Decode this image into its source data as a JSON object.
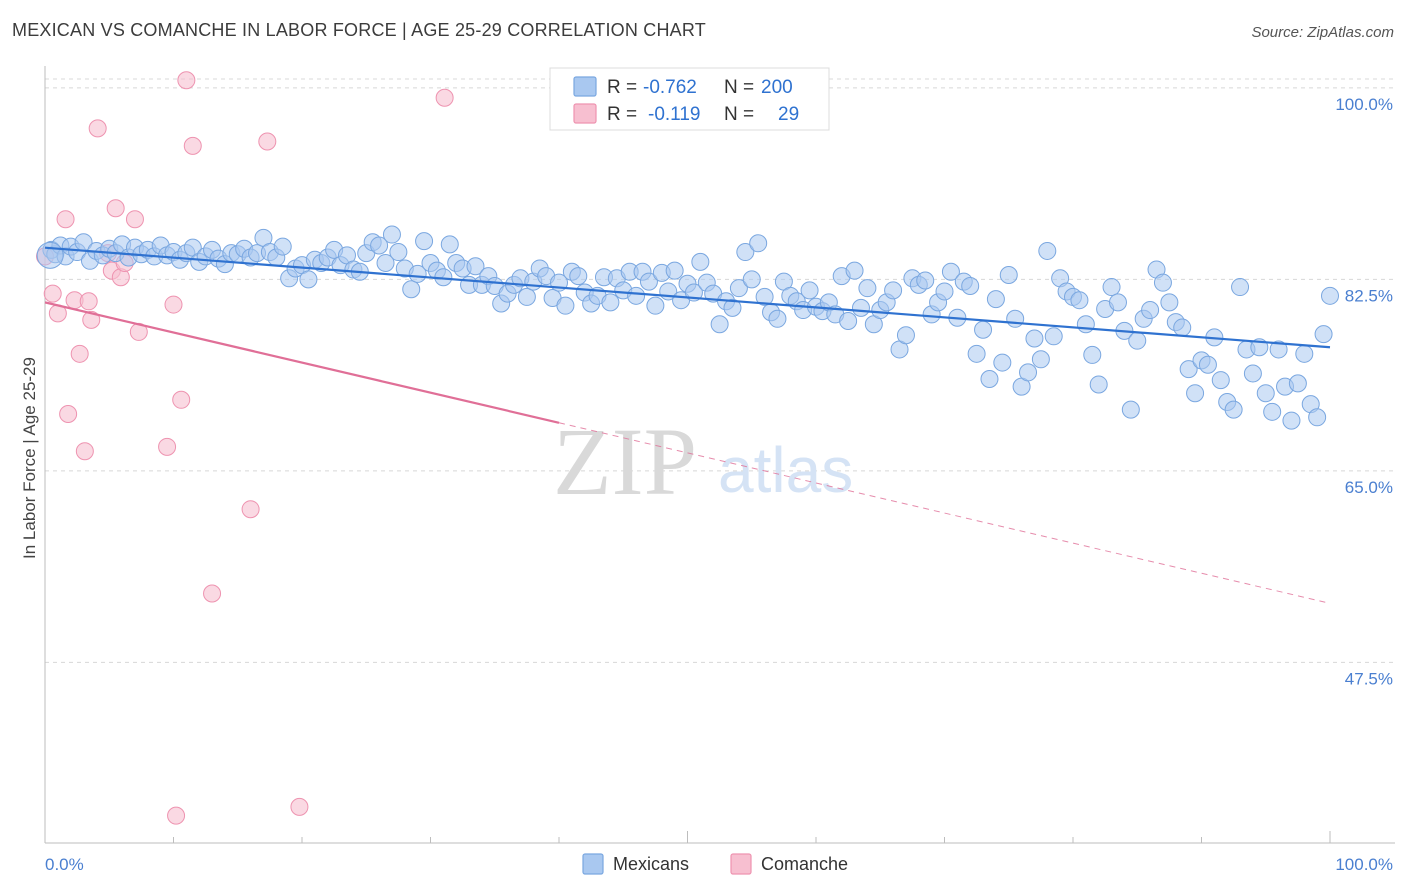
{
  "title": "MEXICAN VS COMANCHE IN LABOR FORCE | AGE 25-29 CORRELATION CHART",
  "source": "Source: ZipAtlas.com",
  "watermark": {
    "zip": "ZIP",
    "atlas": "atlas"
  },
  "colors": {
    "blue_fill": "#a9c8f0",
    "blue_stroke": "#7aa7e0",
    "blue_line": "#2f72d0",
    "pink_fill": "#f7bfd0",
    "pink_stroke": "#ee93b0",
    "pink_line": "#e06f97",
    "grid": "#d8d8d8",
    "tick_text": "#4a7fd0"
  },
  "legend": {
    "rows": [
      {
        "r_label": "R =",
        "r_value": "-0.762",
        "n_label": "N =",
        "n_value": "200",
        "color": "#a9c8f0"
      },
      {
        "r_label": "R =",
        "r_value": "-0.119",
        "n_label": "N =",
        "n_value": "29",
        "color": "#f7bfd0"
      }
    ]
  },
  "bottom_legend": [
    {
      "label": "Mexicans",
      "color": "#a9c8f0"
    },
    {
      "label": "Comanche",
      "color": "#f7bfd0"
    }
  ],
  "chart_data": {
    "type": "scatter",
    "title": "MEXICAN VS COMANCHE IN LABOR FORCE | AGE 25-29 CORRELATION CHART",
    "xlabel": "",
    "ylabel": "In Labor Force | Age 25-29",
    "xlim": [
      0,
      100
    ],
    "ylim": [
      31,
      102
    ],
    "x_tick_labels": [
      "0.0%",
      "100.0%"
    ],
    "y_ticks": [
      100.0,
      82.5,
      65.0,
      47.5
    ],
    "y_tick_labels": [
      "100.0%",
      "82.5%",
      "65.0%",
      "47.5%"
    ],
    "grid": true,
    "legend_position": "top-center",
    "series": [
      {
        "name": "Mexicans",
        "trend": {
          "x0": 0,
          "y0": 85.4,
          "x1": 100,
          "y1": 76.3
        },
        "points": [
          [
            0.5,
            85.2
          ],
          [
            0.8,
            84.8
          ],
          [
            1.2,
            85.6
          ],
          [
            1.6,
            84.6
          ],
          [
            2.0,
            85.5
          ],
          [
            2.5,
            85.0
          ],
          [
            3.0,
            85.9
          ],
          [
            3.5,
            84.2
          ],
          [
            4.0,
            85.1
          ],
          [
            4.5,
            84.7
          ],
          [
            5.0,
            85.3
          ],
          [
            5.5,
            84.9
          ],
          [
            6.0,
            85.7
          ],
          [
            6.5,
            84.5
          ],
          [
            7.0,
            85.4
          ],
          [
            7.5,
            84.8
          ],
          [
            8.0,
            85.2
          ],
          [
            8.5,
            84.6
          ],
          [
            9.0,
            85.6
          ],
          [
            9.5,
            84.7
          ],
          [
            10.0,
            85.0
          ],
          [
            10.5,
            84.3
          ],
          [
            11.0,
            84.9
          ],
          [
            11.5,
            85.4
          ],
          [
            12.0,
            84.1
          ],
          [
            12.5,
            84.6
          ],
          [
            13.0,
            85.2
          ],
          [
            13.5,
            84.4
          ],
          [
            14.0,
            83.9
          ],
          [
            14.5,
            84.9
          ],
          [
            15.0,
            84.8
          ],
          [
            15.5,
            85.3
          ],
          [
            16.0,
            84.5
          ],
          [
            16.5,
            84.9
          ],
          [
            17.0,
            86.3
          ],
          [
            17.5,
            85.0
          ],
          [
            18.0,
            84.5
          ],
          [
            18.5,
            85.5
          ],
          [
            19.0,
            82.6
          ],
          [
            19.5,
            83.5
          ],
          [
            20.0,
            83.8
          ],
          [
            20.5,
            82.5
          ],
          [
            21.0,
            84.3
          ],
          [
            21.5,
            84.0
          ],
          [
            22.0,
            84.5
          ],
          [
            22.5,
            85.2
          ],
          [
            23.0,
            83.8
          ],
          [
            23.5,
            84.7
          ],
          [
            24.0,
            83.4
          ],
          [
            24.5,
            83.2
          ],
          [
            25.0,
            84.9
          ],
          [
            25.5,
            85.9
          ],
          [
            26.0,
            85.6
          ],
          [
            26.5,
            84.0
          ],
          [
            27.0,
            86.6
          ],
          [
            27.5,
            85.0
          ],
          [
            28.0,
            83.5
          ],
          [
            28.5,
            81.6
          ],
          [
            29.0,
            83.0
          ],
          [
            29.5,
            86.0
          ],
          [
            30.0,
            84.0
          ],
          [
            30.5,
            83.3
          ],
          [
            31.0,
            82.7
          ],
          [
            31.5,
            85.7
          ],
          [
            32.0,
            84.0
          ],
          [
            32.5,
            83.5
          ],
          [
            33.0,
            82.0
          ],
          [
            33.5,
            83.7
          ],
          [
            34.0,
            82.0
          ],
          [
            34.5,
            82.8
          ],
          [
            35.0,
            81.9
          ],
          [
            35.5,
            80.3
          ],
          [
            36.0,
            81.2
          ],
          [
            36.5,
            82.0
          ],
          [
            37.0,
            82.6
          ],
          [
            37.5,
            80.9
          ],
          [
            38.0,
            82.3
          ],
          [
            38.5,
            83.5
          ],
          [
            39.0,
            82.8
          ],
          [
            39.5,
            80.8
          ],
          [
            40.0,
            82.2
          ],
          [
            40.5,
            80.1
          ],
          [
            41.0,
            83.2
          ],
          [
            41.5,
            82.8
          ],
          [
            42.0,
            81.3
          ],
          [
            42.5,
            80.3
          ],
          [
            43.0,
            81.0
          ],
          [
            43.5,
            82.7
          ],
          [
            44.0,
            80.4
          ],
          [
            44.5,
            82.6
          ],
          [
            45.0,
            81.5
          ],
          [
            45.5,
            83.2
          ],
          [
            46.0,
            81.0
          ],
          [
            46.5,
            83.2
          ],
          [
            47.0,
            82.3
          ],
          [
            47.5,
            80.1
          ],
          [
            48.0,
            83.1
          ],
          [
            48.5,
            81.4
          ],
          [
            49.0,
            83.3
          ],
          [
            49.5,
            80.6
          ],
          [
            50.0,
            82.1
          ],
          [
            50.5,
            81.3
          ],
          [
            51.0,
            84.1
          ],
          [
            51.5,
            82.2
          ],
          [
            52.0,
            81.2
          ],
          [
            52.5,
            78.4
          ],
          [
            53.0,
            80.5
          ],
          [
            53.5,
            79.9
          ],
          [
            54.0,
            81.7
          ],
          [
            54.5,
            85.0
          ],
          [
            55.0,
            82.5
          ],
          [
            55.5,
            85.8
          ],
          [
            56.0,
            80.9
          ],
          [
            56.5,
            79.5
          ],
          [
            57.0,
            78.9
          ],
          [
            57.5,
            82.3
          ],
          [
            58.0,
            81.0
          ],
          [
            58.5,
            80.5
          ],
          [
            59.0,
            79.7
          ],
          [
            59.5,
            81.5
          ],
          [
            60.0,
            80.0
          ],
          [
            60.5,
            79.6
          ],
          [
            61.0,
            80.4
          ],
          [
            61.5,
            79.3
          ],
          [
            62.0,
            82.8
          ],
          [
            62.5,
            78.7
          ],
          [
            63.0,
            83.3
          ],
          [
            63.5,
            79.9
          ],
          [
            64.0,
            81.7
          ],
          [
            64.5,
            78.4
          ],
          [
            65.0,
            79.7
          ],
          [
            65.5,
            80.4
          ],
          [
            66.0,
            81.5
          ],
          [
            66.5,
            76.1
          ],
          [
            67.0,
            77.4
          ],
          [
            67.5,
            82.6
          ],
          [
            68.0,
            82.0
          ],
          [
            68.5,
            82.4
          ],
          [
            69.0,
            79.3
          ],
          [
            69.5,
            80.4
          ],
          [
            70.0,
            81.4
          ],
          [
            70.5,
            83.2
          ],
          [
            71.0,
            79.0
          ],
          [
            71.5,
            82.3
          ],
          [
            72.0,
            81.9
          ],
          [
            72.5,
            75.7
          ],
          [
            73.0,
            77.9
          ],
          [
            73.5,
            73.4
          ],
          [
            74.0,
            80.7
          ],
          [
            74.5,
            74.9
          ],
          [
            75.0,
            82.9
          ],
          [
            75.5,
            78.9
          ],
          [
            76.0,
            72.7
          ],
          [
            76.5,
            74.0
          ],
          [
            77.0,
            77.1
          ],
          [
            77.5,
            75.2
          ],
          [
            78.0,
            85.1
          ],
          [
            78.5,
            77.3
          ],
          [
            79.0,
            82.6
          ],
          [
            79.5,
            81.4
          ],
          [
            80.0,
            80.9
          ],
          [
            80.5,
            80.6
          ],
          [
            81.0,
            78.4
          ],
          [
            81.5,
            75.6
          ],
          [
            82.0,
            72.9
          ],
          [
            82.5,
            79.8
          ],
          [
            83.0,
            81.8
          ],
          [
            83.5,
            80.4
          ],
          [
            84.0,
            77.8
          ],
          [
            84.5,
            70.6
          ],
          [
            85.0,
            76.9
          ],
          [
            85.5,
            78.9
          ],
          [
            86.0,
            79.7
          ],
          [
            86.5,
            83.4
          ],
          [
            87.0,
            82.2
          ],
          [
            87.5,
            80.4
          ],
          [
            88.0,
            78.6
          ],
          [
            88.5,
            78.1
          ],
          [
            89.0,
            74.3
          ],
          [
            89.5,
            72.1
          ],
          [
            90.0,
            75.1
          ],
          [
            90.5,
            74.7
          ],
          [
            91.0,
            77.2
          ],
          [
            91.5,
            73.3
          ],
          [
            92.0,
            71.3
          ],
          [
            92.5,
            70.6
          ],
          [
            93.0,
            81.8
          ],
          [
            93.5,
            76.1
          ],
          [
            94.0,
            73.9
          ],
          [
            94.5,
            76.3
          ],
          [
            95.0,
            72.1
          ],
          [
            95.5,
            70.4
          ],
          [
            96.0,
            76.1
          ],
          [
            96.5,
            72.7
          ],
          [
            97.0,
            69.6
          ],
          [
            97.5,
            73.0
          ],
          [
            98.0,
            75.7
          ],
          [
            98.5,
            71.1
          ],
          [
            99.0,
            69.9
          ],
          [
            99.5,
            77.5
          ],
          [
            100.0,
            81.0
          ]
        ]
      },
      {
        "name": "Comanche",
        "trend": {
          "x0": 0,
          "y0": 80.4,
          "x1": 40,
          "y1": 69.4,
          "dashed_to": {
            "x": 100,
            "y": 52.9
          }
        },
        "points": [
          [
            0.0,
            84.6
          ],
          [
            0.6,
            81.2
          ],
          [
            1.0,
            79.4
          ],
          [
            1.6,
            88.0
          ],
          [
            1.8,
            70.2
          ],
          [
            2.3,
            80.6
          ],
          [
            2.7,
            75.7
          ],
          [
            3.1,
            66.8
          ],
          [
            3.4,
            80.5
          ],
          [
            3.6,
            78.8
          ],
          [
            4.1,
            96.3
          ],
          [
            4.9,
            84.9
          ],
          [
            5.2,
            83.3
          ],
          [
            5.5,
            89.0
          ],
          [
            5.9,
            82.7
          ],
          [
            6.2,
            84.0
          ],
          [
            7.0,
            88.0
          ],
          [
            7.3,
            77.7
          ],
          [
            9.5,
            67.2
          ],
          [
            10.0,
            80.2
          ],
          [
            10.2,
            33.5
          ],
          [
            10.6,
            71.5
          ],
          [
            11.0,
            100.7
          ],
          [
            11.5,
            94.7
          ],
          [
            13.0,
            53.8
          ],
          [
            16.0,
            61.5
          ],
          [
            17.3,
            95.1
          ],
          [
            19.8,
            34.3
          ],
          [
            31.1,
            99.1
          ]
        ]
      }
    ]
  }
}
